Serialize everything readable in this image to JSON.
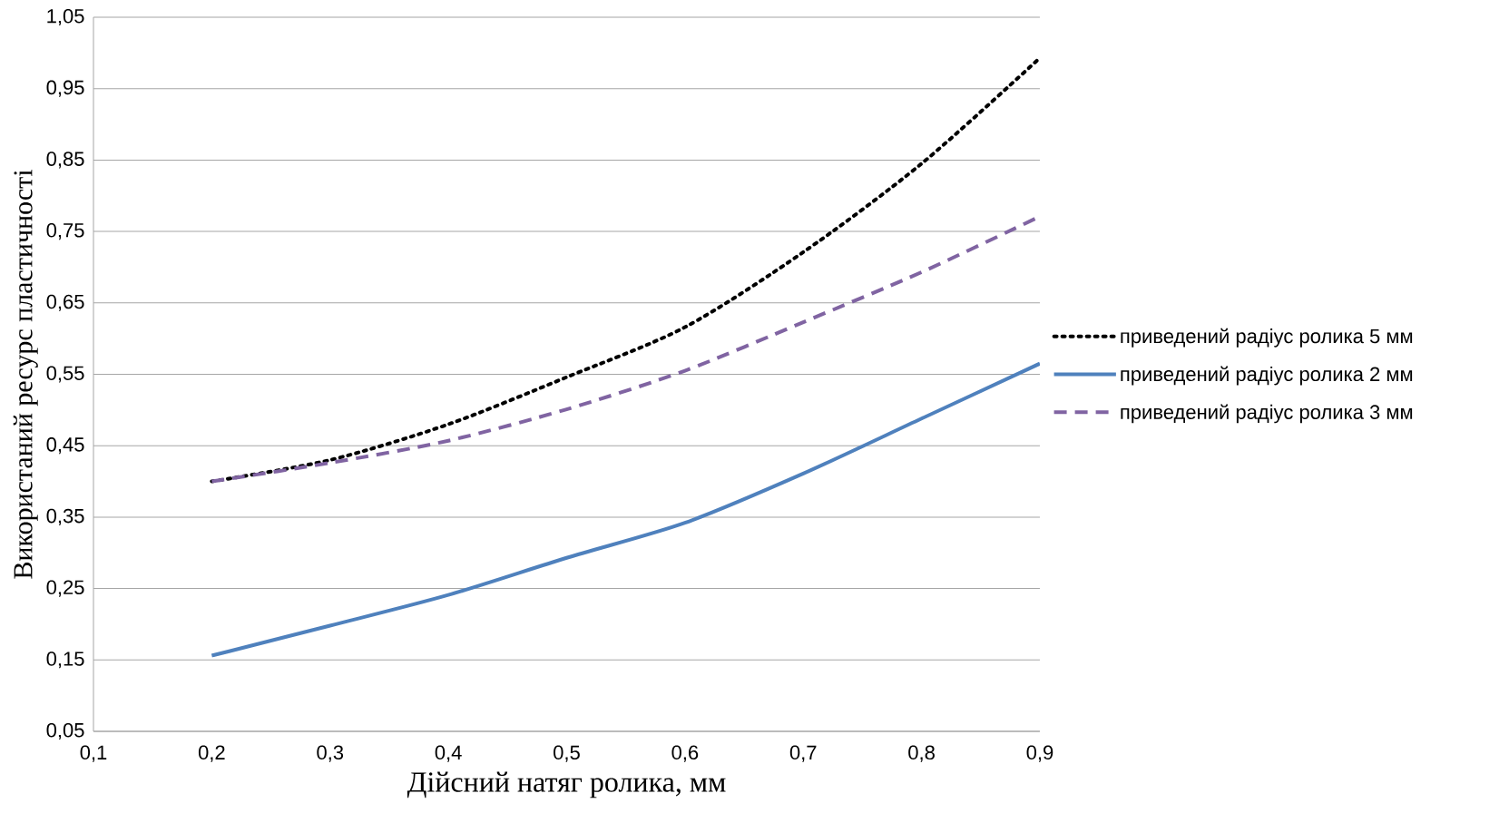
{
  "chart_data": {
    "type": "line",
    "xlabel": "Дійсний натяг ролика, мм",
    "ylabel": "Використаний ресурс пластичності",
    "x": [
      0.2,
      0.3,
      0.4,
      0.5,
      0.6,
      0.7,
      0.8,
      0.9
    ],
    "series": [
      {
        "name": "приведений радіус ролика 5 мм",
        "color": "#000000",
        "line_style": "dotted",
        "values": [
          0.4,
          0.43,
          0.48,
          0.546,
          0.616,
          0.721,
          0.845,
          0.993
        ]
      },
      {
        "name": "приведений радіус ролика 2 мм",
        "color": "#4f81bd",
        "line_style": "solid",
        "values": [
          0.156,
          0.198,
          0.241,
          0.293,
          0.342,
          0.411,
          0.488,
          0.565
        ]
      },
      {
        "name": "приведений радіус ролика 3 мм",
        "color": "#8064a2",
        "line_style": "dashed",
        "values": [
          0.4,
          0.426,
          0.457,
          0.501,
          0.555,
          0.623,
          0.693,
          0.771
        ]
      }
    ],
    "xlim": [
      0.1,
      0.9
    ],
    "ylim": [
      0.05,
      1.05
    ],
    "xticks": [
      {
        "value": 0.1,
        "label": "0,1"
      },
      {
        "value": 0.2,
        "label": "0,2"
      },
      {
        "value": 0.3,
        "label": "0,3"
      },
      {
        "value": 0.4,
        "label": "0,4"
      },
      {
        "value": 0.5,
        "label": "0,5"
      },
      {
        "value": 0.6,
        "label": "0,6"
      },
      {
        "value": 0.7,
        "label": "0,7"
      },
      {
        "value": 0.8,
        "label": "0,8"
      },
      {
        "value": 0.9,
        "label": "0,9"
      }
    ],
    "yticks": [
      {
        "value": 0.05,
        "label": "0,05"
      },
      {
        "value": 0.15,
        "label": "0,15"
      },
      {
        "value": 0.25,
        "label": "0,25"
      },
      {
        "value": 0.35,
        "label": "0,35"
      },
      {
        "value": 0.45,
        "label": "0,45"
      },
      {
        "value": 0.55,
        "label": "0,55"
      },
      {
        "value": 0.65,
        "label": "0,65"
      },
      {
        "value": 0.75,
        "label": "0,75"
      },
      {
        "value": 0.85,
        "label": "0,85"
      },
      {
        "value": 0.95,
        "label": "0,95"
      },
      {
        "value": 1.05,
        "label": "1,05"
      }
    ],
    "grid": "y",
    "legend": "right",
    "marker": "none"
  }
}
